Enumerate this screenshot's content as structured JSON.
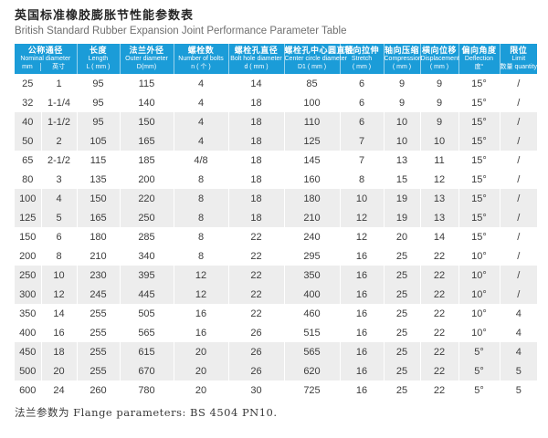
{
  "title": {
    "zh": "英国标准橡胶膨胀节性能参数表",
    "en": "British Standard Rubber Expansion Joint Performance Parameter Table"
  },
  "table": {
    "group_header": {
      "zh": "公称通径",
      "en": "Nominal diameter",
      "sub_units": [
        "mm",
        "英寸"
      ]
    },
    "columns": [
      {
        "zh": "长度",
        "en": "Length",
        "unit": "L ( mm )"
      },
      {
        "zh": "法兰外径",
        "en": "Outer diameter",
        "unit": "D(mm)"
      },
      {
        "zh": "螺栓数",
        "en": "Number of bolts",
        "unit": "n ( 个 )"
      },
      {
        "zh": "螺栓孔直径",
        "en": "Bolt hole diameter",
        "unit": "d ( mm )"
      },
      {
        "zh": "螺栓孔中心圆直径",
        "en": "Center circle diameter",
        "unit": "D1 ( mm )"
      },
      {
        "zh": "轴向拉伸",
        "en": "Stretch",
        "unit": "( mm )"
      },
      {
        "zh": "轴向压缩",
        "en": "Compression",
        "unit": "( mm )"
      },
      {
        "zh": "横向位移",
        "en": "Displacement",
        "unit": "( mm )"
      },
      {
        "zh": "偏向角度",
        "en": "Deflection",
        "unit": "度°"
      },
      {
        "zh": "限位",
        "en": "Limit",
        "unit": "数量 quantity"
      }
    ],
    "rows": [
      [
        "25",
        "1",
        "95",
        "115",
        "4",
        "14",
        "85",
        "6",
        "9",
        "9",
        "15°",
        "/"
      ],
      [
        "32",
        "1-1/4",
        "95",
        "140",
        "4",
        "18",
        "100",
        "6",
        "9",
        "9",
        "15°",
        "/"
      ],
      [
        "40",
        "1-1/2",
        "95",
        "150",
        "4",
        "18",
        "110",
        "6",
        "10",
        "9",
        "15°",
        "/"
      ],
      [
        "50",
        "2",
        "105",
        "165",
        "4",
        "18",
        "125",
        "7",
        "10",
        "10",
        "15°",
        "/"
      ],
      [
        "65",
        "2-1/2",
        "115",
        "185",
        "4/8",
        "18",
        "145",
        "7",
        "13",
        "11",
        "15°",
        "/"
      ],
      [
        "80",
        "3",
        "135",
        "200",
        "8",
        "18",
        "160",
        "8",
        "15",
        "12",
        "15°",
        "/"
      ],
      [
        "100",
        "4",
        "150",
        "220",
        "8",
        "18",
        "180",
        "10",
        "19",
        "13",
        "15°",
        "/"
      ],
      [
        "125",
        "5",
        "165",
        "250",
        "8",
        "18",
        "210",
        "12",
        "19",
        "13",
        "15°",
        "/"
      ],
      [
        "150",
        "6",
        "180",
        "285",
        "8",
        "22",
        "240",
        "12",
        "20",
        "14",
        "15°",
        "/"
      ],
      [
        "200",
        "8",
        "210",
        "340",
        "8",
        "22",
        "295",
        "16",
        "25",
        "22",
        "10°",
        "/"
      ],
      [
        "250",
        "10",
        "230",
        "395",
        "12",
        "22",
        "350",
        "16",
        "25",
        "22",
        "10°",
        "/"
      ],
      [
        "300",
        "12",
        "245",
        "445",
        "12",
        "22",
        "400",
        "16",
        "25",
        "22",
        "10°",
        "/"
      ],
      [
        "350",
        "14",
        "255",
        "505",
        "16",
        "22",
        "460",
        "16",
        "25",
        "22",
        "10°",
        "4"
      ],
      [
        "400",
        "16",
        "255",
        "565",
        "16",
        "26",
        "515",
        "16",
        "25",
        "22",
        "10°",
        "4"
      ],
      [
        "450",
        "18",
        "255",
        "615",
        "20",
        "26",
        "565",
        "16",
        "25",
        "22",
        "5°",
        "4"
      ],
      [
        "500",
        "20",
        "255",
        "670",
        "20",
        "26",
        "620",
        "16",
        "25",
        "22",
        "5°",
        "5"
      ],
      [
        "600",
        "24",
        "260",
        "780",
        "20",
        "30",
        "725",
        "16",
        "25",
        "22",
        "5°",
        "5"
      ]
    ]
  },
  "footer": {
    "note": "法兰参数为 Flange parameters: BS 4504 PN10."
  },
  "colors": {
    "header_bg": "#1b9cd8",
    "row_alt_bg": "#ededed",
    "header_text": "#ffffff",
    "body_text": "#3c3c3c"
  }
}
